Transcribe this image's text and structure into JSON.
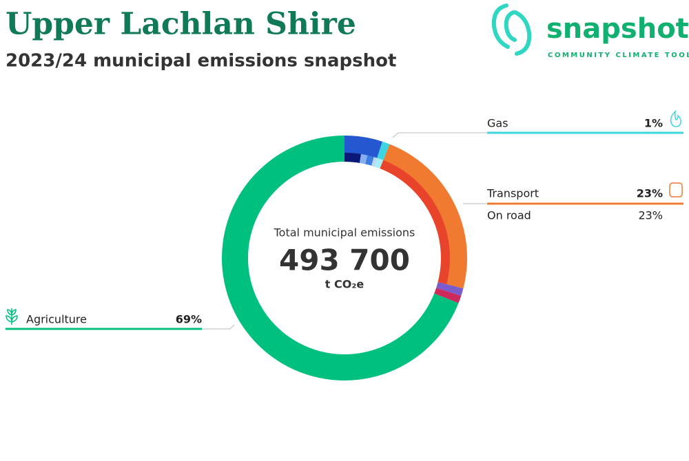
{
  "chart_data": {
    "type": "donut",
    "title": "Upper Lachlan Shire",
    "subtitle": "2023/24 municipal emissions snapshot",
    "logo": {
      "name": "snapshot",
      "tagline": "COMMUNITY CLIMATE TOOL"
    },
    "center": {
      "caption": "Total municipal emissions",
      "total": 493700,
      "total_label": "493 700",
      "unit": "t CO₂e"
    },
    "series": [
      {
        "categories": [
          null,
          "Gas",
          "Transport",
          null,
          null,
          "Agriculture"
        ],
        "values": [
          5,
          1,
          23,
          1,
          1,
          69
        ],
        "value_labels": [
          null,
          "1%",
          "23%",
          null,
          null,
          "69%"
        ],
        "colors": [
          "#2457d0",
          "#3dd6e0",
          "#f07a30",
          "#7a5ccc",
          "#cc2a5a",
          "#00c080"
        ]
      },
      {
        "categories": [
          null,
          null,
          null,
          null,
          null,
          "On road"
        ],
        "values": [
          2.5,
          1,
          1,
          0.5,
          1,
          23
        ],
        "value_labels": [
          null,
          null,
          null,
          null,
          null,
          "23%"
        ],
        "colors": [
          "#0a1878",
          "#86aef0",
          "#3d7de0",
          "#bcd8f5",
          "#a8eef2",
          "#e8442c"
        ]
      }
    ]
  }
}
